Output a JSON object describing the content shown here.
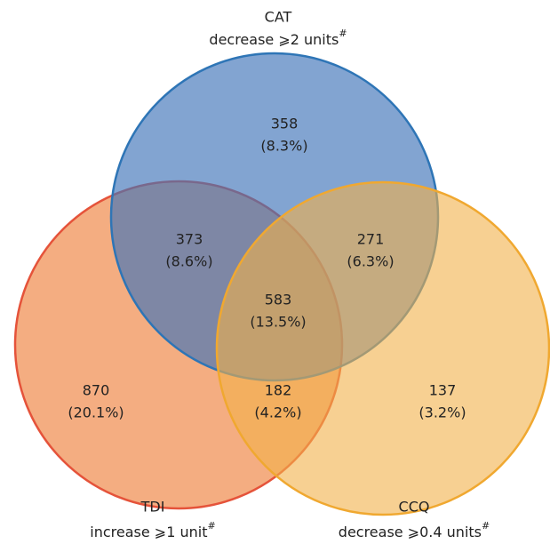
{
  "sets": [
    {
      "name": "CAT",
      "criterion": "decrease ⩾2 units",
      "mark": "#"
    },
    {
      "name": "TDI",
      "criterion": "increase ⩾1 unit",
      "mark": "#"
    },
    {
      "name": "CCQ",
      "criterion": "decrease ⩾0.4 units",
      "mark": "#"
    }
  ],
  "regions": [
    {
      "count": 358,
      "percent": "(8.3%)"
    },
    {
      "count": 373,
      "percent": "(8.6%)"
    },
    {
      "count": 271,
      "percent": "(6.3%)"
    },
    {
      "count": 583,
      "percent": "(13.5%)"
    },
    {
      "count": 870,
      "percent": "(20.1%)"
    },
    {
      "count": 182,
      "percent": "(4.2%)"
    },
    {
      "count": 137,
      "percent": "(3.2%)"
    }
  ]
}
